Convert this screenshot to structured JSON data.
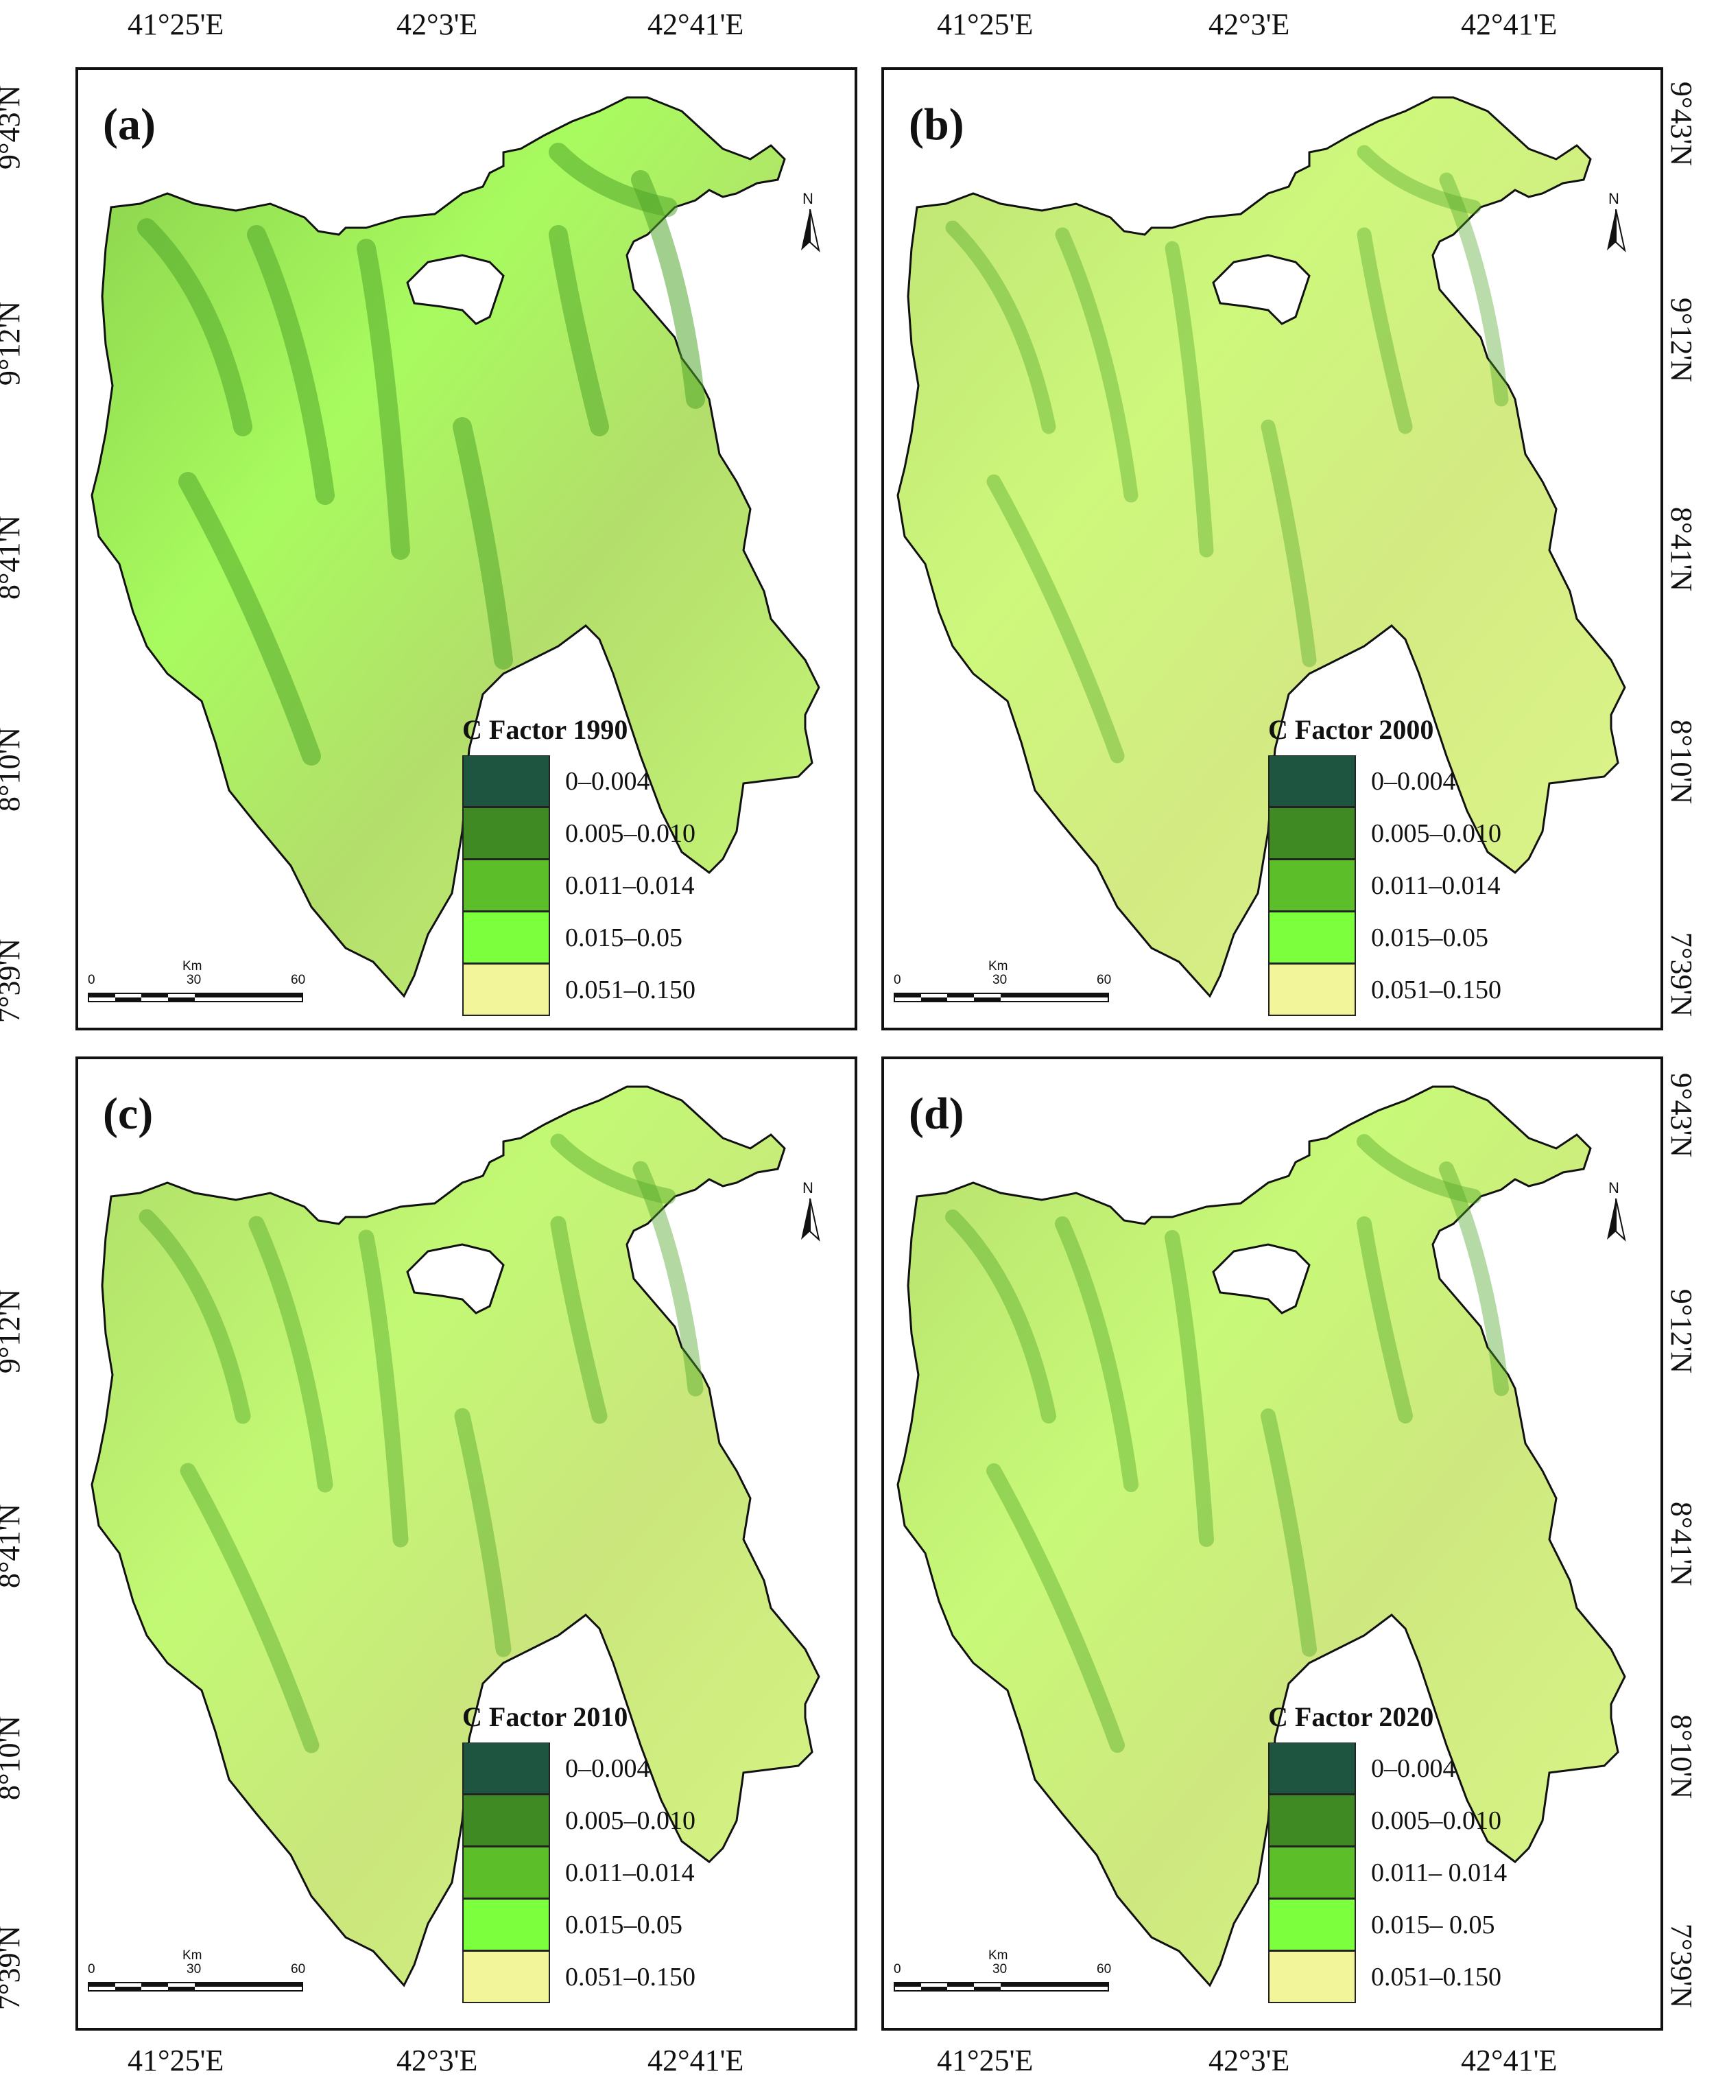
{
  "top_lon_labels_left": [
    "41°25'E",
    "42°3'E",
    "42°41'E"
  ],
  "top_lon_labels_right": [
    "41°25'E",
    "42°3'E",
    "42°41'E"
  ],
  "bottom_lon_labels_left": [
    "41°25'E",
    "42°3'E",
    "42°41'E"
  ],
  "bottom_lon_labels_right": [
    "41°25'E",
    "42°3'E",
    "42°41'E"
  ],
  "left_lat_labels_top": [
    "9°43'N",
    "9°12'N",
    "8°41'N",
    "8°10'N",
    "7°39'N"
  ],
  "right_lat_labels_top": [
    "9°43'N",
    "9°12'N",
    "8°41'N",
    "8°10'N",
    "7°39'N"
  ],
  "right_lat_labels_bottom": [
    "9°43'N",
    "9°12'N",
    "8°41'N",
    "8°10'N",
    "7°39'N"
  ],
  "left_lat_labels_bottom": [
    "9°12'N",
    "8°41'N",
    "8°10'N",
    "7°39'N"
  ],
  "panels": [
    {
      "letter": "(a)",
      "legend_title": "C  Factor 1990",
      "classes": [
        "0–0.004",
        "0.005–0.010",
        "0.011–0.014",
        "0.015–0.05",
        "0.051–0.150"
      ],
      "tone": 0.7
    },
    {
      "letter": "(b)",
      "legend_title": "C  Factor 2000",
      "classes": [
        "0–0.004",
        "0.005–0.010",
        "0.011–0.014",
        "0.015–0.05",
        "0.051–0.150"
      ],
      "tone": 0.35
    },
    {
      "letter": "(c)",
      "legend_title": "C  Factor 2010",
      "classes": [
        "0–0.004",
        "0.005–0.010",
        "0.011–0.014",
        "0.015–0.05",
        "0.051–0.150"
      ],
      "tone": 0.45
    },
    {
      "letter": "(d)",
      "legend_title": "C  Factor 2020",
      "classes": [
        "0–0.004",
        "0.005–0.010",
        "0.011– 0.014",
        "0.015– 0.05",
        "0.051–0.150"
      ],
      "tone": 0.4
    }
  ],
  "legend_colors": [
    "#1d5540",
    "#3f8a23",
    "#5cbf2a",
    "#7cff3c",
    "#f2f59a"
  ],
  "scale": {
    "unit": "Km",
    "ticks": [
      "0",
      "30",
      "60"
    ]
  },
  "north_label": "N"
}
